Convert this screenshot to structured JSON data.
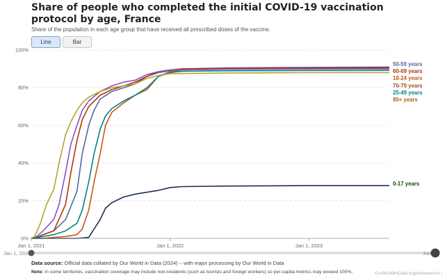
{
  "header": {
    "title": "Share of people who completed the initial COVID-19 vaccination protocol by age, France",
    "subtitle": "Share of the population in each age group that have received all prescribed doses of the vaccine."
  },
  "tabs": [
    {
      "label": "Line",
      "active": true
    },
    {
      "label": "Bar",
      "active": false
    }
  ],
  "timeline": {
    "start_label": "Jan 1, 2021",
    "end_label": "Jun 2"
  },
  "footer": {
    "source_label": "Data source:",
    "source_text": "Official data collated by Our World in Data (2024) – with major processing by Our World in Data",
    "note_label": "Note:",
    "note_text": "In some territories, vaccination coverage may include non-residents (such as tourists and foreign workers) so per-capita metrics may exceed 100%.",
    "credit": "OurWorldInData.org/coronavirus |"
  },
  "chart_data": {
    "type": "line",
    "title": "Share of people who completed the initial COVID-19 vaccination protocol by age, France",
    "x_axis": {
      "type": "date",
      "min": "2021-01-01",
      "max": "2023-07-31",
      "ticks": [
        {
          "date": "2021-01-01",
          "label": "Jan 1, 2021"
        },
        {
          "date": "2022-01-01",
          "label": "Jan 1, 2022"
        },
        {
          "date": "2023-01-01",
          "label": "Jan 1, 2023"
        }
      ]
    },
    "y_axis": {
      "min": 0,
      "max": 100,
      "unit": "%",
      "ticks": [
        "0%",
        "20%",
        "40%",
        "60%",
        "80%",
        "100%"
      ]
    },
    "grid": true,
    "legend": "inline-right",
    "series": [
      {
        "name": "50-59 years",
        "color": "#4c6a9c",
        "points": [
          [
            "2021-01-01",
            0
          ],
          [
            "2021-01-15",
            0.5
          ],
          [
            "2021-02-01",
            2
          ],
          [
            "2021-03-01",
            4
          ],
          [
            "2021-04-01",
            10
          ],
          [
            "2021-05-01",
            25
          ],
          [
            "2021-05-15",
            45
          ],
          [
            "2021-06-01",
            60
          ],
          [
            "2021-06-15",
            68
          ],
          [
            "2021-07-01",
            74
          ],
          [
            "2021-08-01",
            78
          ],
          [
            "2021-09-01",
            80
          ],
          [
            "2021-10-01",
            82
          ],
          [
            "2021-11-01",
            86
          ],
          [
            "2021-12-01",
            88
          ],
          [
            "2022-01-01",
            89
          ],
          [
            "2022-02-01",
            90
          ],
          [
            "2022-06-01",
            90.5
          ],
          [
            "2023-01-01",
            90.8
          ],
          [
            "2023-07-31",
            91
          ]
        ]
      },
      {
        "name": "60-69 years",
        "color": "#b13507",
        "points": [
          [
            "2021-01-01",
            0
          ],
          [
            "2021-01-15",
            0.5
          ],
          [
            "2021-02-01",
            2
          ],
          [
            "2021-03-01",
            4
          ],
          [
            "2021-04-01",
            18
          ],
          [
            "2021-04-15",
            35
          ],
          [
            "2021-05-01",
            52
          ],
          [
            "2021-05-15",
            63
          ],
          [
            "2021-06-01",
            70
          ],
          [
            "2021-07-01",
            76
          ],
          [
            "2021-08-01",
            79
          ],
          [
            "2021-09-01",
            81
          ],
          [
            "2021-10-01",
            83
          ],
          [
            "2021-11-01",
            86
          ],
          [
            "2021-12-01",
            88.5
          ],
          [
            "2022-01-01",
            89.5
          ],
          [
            "2022-02-01",
            90
          ],
          [
            "2022-06-01",
            90.2
          ],
          [
            "2023-01-01",
            90.4
          ],
          [
            "2023-07-31",
            90.5
          ]
        ]
      },
      {
        "name": "18-24 years",
        "color": "#c05917",
        "points": [
          [
            "2021-01-01",
            0
          ],
          [
            "2021-02-01",
            0
          ],
          [
            "2021-03-01",
            0.5
          ],
          [
            "2021-04-01",
            1
          ],
          [
            "2021-05-01",
            2
          ],
          [
            "2021-05-15",
            5
          ],
          [
            "2021-06-01",
            15
          ],
          [
            "2021-06-15",
            30
          ],
          [
            "2021-07-01",
            45
          ],
          [
            "2021-07-15",
            60
          ],
          [
            "2021-08-01",
            67
          ],
          [
            "2021-09-01",
            72
          ],
          [
            "2021-10-01",
            76
          ],
          [
            "2021-11-01",
            79
          ],
          [
            "2021-12-01",
            86
          ],
          [
            "2022-01-01",
            88.5
          ],
          [
            "2022-02-01",
            89.5
          ],
          [
            "2022-06-01",
            89.8
          ],
          [
            "2023-01-01",
            90
          ],
          [
            "2023-07-31",
            90
          ]
        ]
      },
      {
        "name": "70-79 years",
        "color": "#9a5129",
        "line_color": "#8c4fc9",
        "points": [
          [
            "2021-01-01",
            0
          ],
          [
            "2021-01-15",
            1
          ],
          [
            "2021-02-01",
            4
          ],
          [
            "2021-03-01",
            10
          ],
          [
            "2021-03-15",
            18
          ],
          [
            "2021-04-01",
            35
          ],
          [
            "2021-04-15",
            50
          ],
          [
            "2021-05-01",
            60
          ],
          [
            "2021-05-15",
            68
          ],
          [
            "2021-06-01",
            73
          ],
          [
            "2021-07-01",
            78
          ],
          [
            "2021-08-01",
            81
          ],
          [
            "2021-09-01",
            83
          ],
          [
            "2021-10-01",
            84
          ],
          [
            "2021-11-01",
            87
          ],
          [
            "2021-12-01",
            88.5
          ],
          [
            "2022-01-01",
            89.5
          ],
          [
            "2022-06-01",
            89.8
          ],
          [
            "2023-01-01",
            89.9
          ],
          [
            "2023-07-31",
            90
          ]
        ]
      },
      {
        "name": "25-49 years",
        "color": "#00847e",
        "points": [
          [
            "2021-01-01",
            0
          ],
          [
            "2021-02-01",
            1
          ],
          [
            "2021-03-01",
            2
          ],
          [
            "2021-04-01",
            4
          ],
          [
            "2021-05-01",
            8
          ],
          [
            "2021-05-15",
            15
          ],
          [
            "2021-06-01",
            30
          ],
          [
            "2021-06-15",
            45
          ],
          [
            "2021-07-01",
            58
          ],
          [
            "2021-07-15",
            65
          ],
          [
            "2021-08-01",
            69
          ],
          [
            "2021-09-01",
            73
          ],
          [
            "2021-10-01",
            76
          ],
          [
            "2021-11-01",
            80
          ],
          [
            "2021-12-01",
            86
          ],
          [
            "2022-01-01",
            88
          ],
          [
            "2022-02-01",
            88.8
          ],
          [
            "2022-06-01",
            89
          ],
          [
            "2023-01-01",
            89.1
          ],
          [
            "2023-07-31",
            89.2
          ]
        ]
      },
      {
        "name": "80+ years",
        "color": "#b16214",
        "line_color": "#b8a12a",
        "points": [
          [
            "2021-01-01",
            0
          ],
          [
            "2021-01-10",
            1
          ],
          [
            "2021-01-25",
            8
          ],
          [
            "2021-02-10",
            18
          ],
          [
            "2021-03-01",
            26
          ],
          [
            "2021-03-15",
            40
          ],
          [
            "2021-04-01",
            55
          ],
          [
            "2021-04-15",
            62
          ],
          [
            "2021-05-01",
            68
          ],
          [
            "2021-05-15",
            72
          ],
          [
            "2021-06-01",
            75
          ],
          [
            "2021-07-01",
            78
          ],
          [
            "2021-08-01",
            80
          ],
          [
            "2021-09-01",
            81
          ],
          [
            "2021-10-01",
            82
          ],
          [
            "2021-11-01",
            85
          ],
          [
            "2021-12-01",
            86.5
          ],
          [
            "2022-01-01",
            87.5
          ],
          [
            "2022-06-01",
            87.8
          ],
          [
            "2023-01-01",
            88
          ],
          [
            "2023-07-31",
            88
          ]
        ]
      },
      {
        "name": "0-17 years",
        "color": "#18470f",
        "line_color": "#1b2f56",
        "points": [
          [
            "2021-01-01",
            0
          ],
          [
            "2021-05-01",
            0
          ],
          [
            "2021-06-01",
            0.5
          ],
          [
            "2021-06-15",
            5
          ],
          [
            "2021-07-01",
            10
          ],
          [
            "2021-07-15",
            16
          ],
          [
            "2021-08-01",
            19
          ],
          [
            "2021-09-01",
            22
          ],
          [
            "2021-10-01",
            23.5
          ],
          [
            "2021-11-01",
            24.5
          ],
          [
            "2021-12-01",
            25.5
          ],
          [
            "2022-01-01",
            27
          ],
          [
            "2022-02-01",
            27.5
          ],
          [
            "2022-06-01",
            27.8
          ],
          [
            "2023-01-01",
            28
          ],
          [
            "2023-07-31",
            28
          ]
        ]
      }
    ]
  }
}
